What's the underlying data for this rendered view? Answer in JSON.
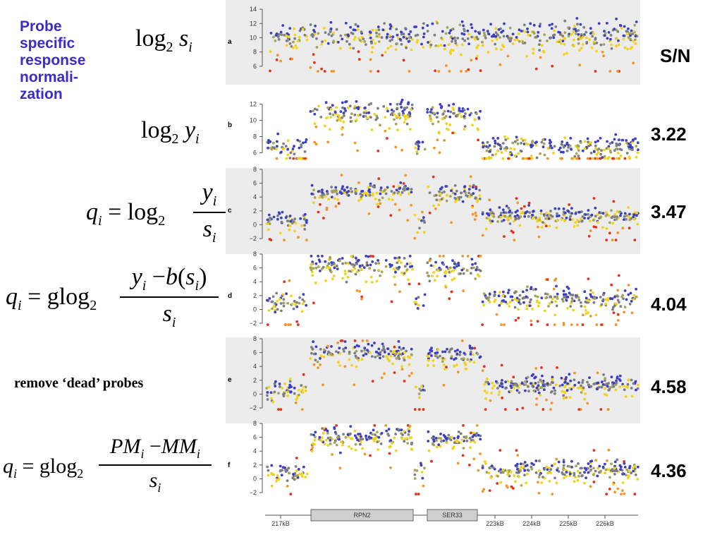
{
  "title_lines": [
    "Probe",
    "specific",
    "response",
    "normali-",
    "zation"
  ],
  "sn_header": "S/N",
  "note": "remove ‘dead’ probes",
  "formulas": {
    "a": "log2 si",
    "b": "log2 yi",
    "c": "qi = log2 yi / si",
    "d": "qi = glog2 (yi − b(si)) / si",
    "f": "qi = glog2 (PMi − MMi) / si"
  },
  "chart_data": {
    "type": "scatter",
    "panels": [
      {
        "id": "a",
        "yticks": [
          6,
          8,
          10,
          12,
          14
        ],
        "ylim": [
          5,
          14.5
        ],
        "sn": "",
        "profile": {
          "bg": 10.2,
          "gap": 10.2,
          "rpn2": 10.2,
          "ser33": 10.2,
          "spread": 1.4
        }
      },
      {
        "id": "b",
        "yticks": [
          6,
          8,
          10,
          12
        ],
        "ylim": [
          5,
          13
        ],
        "sn": "3.22",
        "profile": {
          "bg": 6.6,
          "gap": 6.5,
          "rpn2": 10.9,
          "ser33": 10.6,
          "spread": 1.1
        }
      },
      {
        "id": "c",
        "yticks": [
          -2,
          0,
          2,
          4,
          6,
          8
        ],
        "ylim": [
          -2.5,
          8
        ],
        "sn": "3.47",
        "profile": {
          "bg": 1.2,
          "gap": 0.5,
          "rpn2": 4.6,
          "ser33": 4.3,
          "spread": 0.9
        }
      },
      {
        "id": "d",
        "yticks": [
          -2,
          0,
          2,
          4,
          6,
          8
        ],
        "ylim": [
          -2.5,
          8
        ],
        "sn": "4.04",
        "profile": {
          "bg": 1.5,
          "gap": 1.0,
          "rpn2": 6.2,
          "ser33": 5.8,
          "spread": 1.2
        }
      },
      {
        "id": "e",
        "yticks": [
          -2,
          0,
          2,
          4,
          6,
          8
        ],
        "ylim": [
          -2.5,
          8
        ],
        "sn": "4.58",
        "profile": {
          "bg": 1.2,
          "gap": 0.5,
          "rpn2": 5.8,
          "ser33": 5.5,
          "spread": 1.0
        }
      },
      {
        "id": "f",
        "yticks": [
          -2,
          0,
          2,
          4,
          6,
          8
        ],
        "ylim": [
          -2.5,
          8
        ],
        "sn": "4.36",
        "profile": {
          "bg": 1.2,
          "gap": 0.8,
          "rpn2": 6.0,
          "ser33": 5.6,
          "spread": 1.0
        }
      }
    ],
    "x_axis": {
      "ticks": [
        "217kB",
        "223kB",
        "224kB",
        "225kB",
        "226kB"
      ],
      "genes": [
        {
          "name": "RPN2"
        },
        {
          "name": "SER33"
        }
      ]
    },
    "colors": {
      "blue": "#3a3fc4",
      "gray": "#7c7f86",
      "olive": "#a6a45a",
      "yellow": "#f2d21a",
      "orange": "#f0962a",
      "red": "#e0341a",
      "panel_bg": "#ececec"
    }
  }
}
